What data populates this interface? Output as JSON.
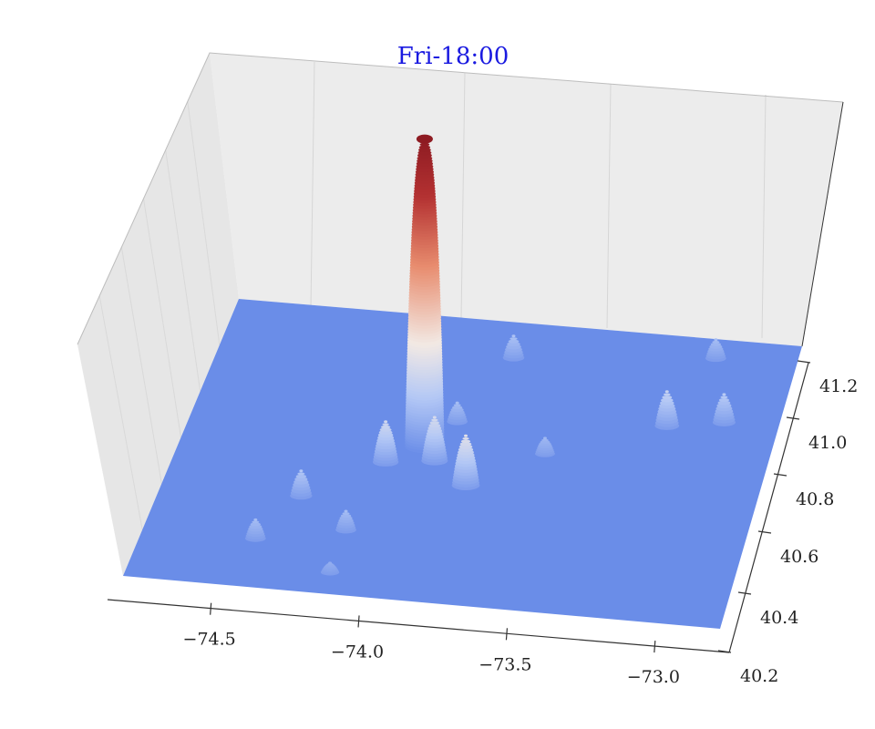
{
  "chart_data": {
    "type": "surface",
    "title": "Fri-18:00",
    "xlabel": "",
    "ylabel": "",
    "zlabel": "",
    "x_ticks": [
      "−74.5",
      "−74.0",
      "−73.5",
      "−73.0"
    ],
    "x_tick_values": [
      -74.5,
      -74.0,
      -73.5,
      -73.0
    ],
    "y_ticks": [
      "40.2",
      "40.4",
      "40.6",
      "40.8",
      "41.0",
      "41.2"
    ],
    "y_tick_values": [
      40.2,
      40.4,
      40.6,
      40.8,
      41.0,
      41.2
    ],
    "xlim": [
      -74.85,
      -72.75
    ],
    "ylim": [
      40.2,
      41.25
    ],
    "grid": true,
    "colormap": "coolwarm",
    "colors": {
      "low": "#6a8de8",
      "mid": "#f2e9e4",
      "high": "#8e1b22",
      "title": "#1a1ae0",
      "pane": "#ececec"
    },
    "peaks": [
      {
        "x": -73.98,
        "y": 40.76,
        "height": 1.0
      },
      {
        "x": -73.93,
        "y": 40.72,
        "height": 0.14
      },
      {
        "x": -73.79,
        "y": 40.64,
        "height": 0.16
      },
      {
        "x": -74.1,
        "y": 40.7,
        "height": 0.13
      },
      {
        "x": -73.78,
        "y": 41.12,
        "height": 0.07
      },
      {
        "x": -73.15,
        "y": 40.92,
        "height": 0.11
      },
      {
        "x": -72.95,
        "y": 40.95,
        "height": 0.09
      },
      {
        "x": -73.05,
        "y": 41.18,
        "height": 0.06
      },
      {
        "x": -74.35,
        "y": 40.55,
        "height": 0.08
      },
      {
        "x": -74.45,
        "y": 40.38,
        "height": 0.06
      },
      {
        "x": -74.15,
        "y": 40.44,
        "height": 0.06
      },
      {
        "x": -73.9,
        "y": 40.87,
        "height": 0.06
      },
      {
        "x": -73.55,
        "y": 40.78,
        "height": 0.05
      },
      {
        "x": -74.15,
        "y": 40.28,
        "height": 0.03
      }
    ]
  }
}
